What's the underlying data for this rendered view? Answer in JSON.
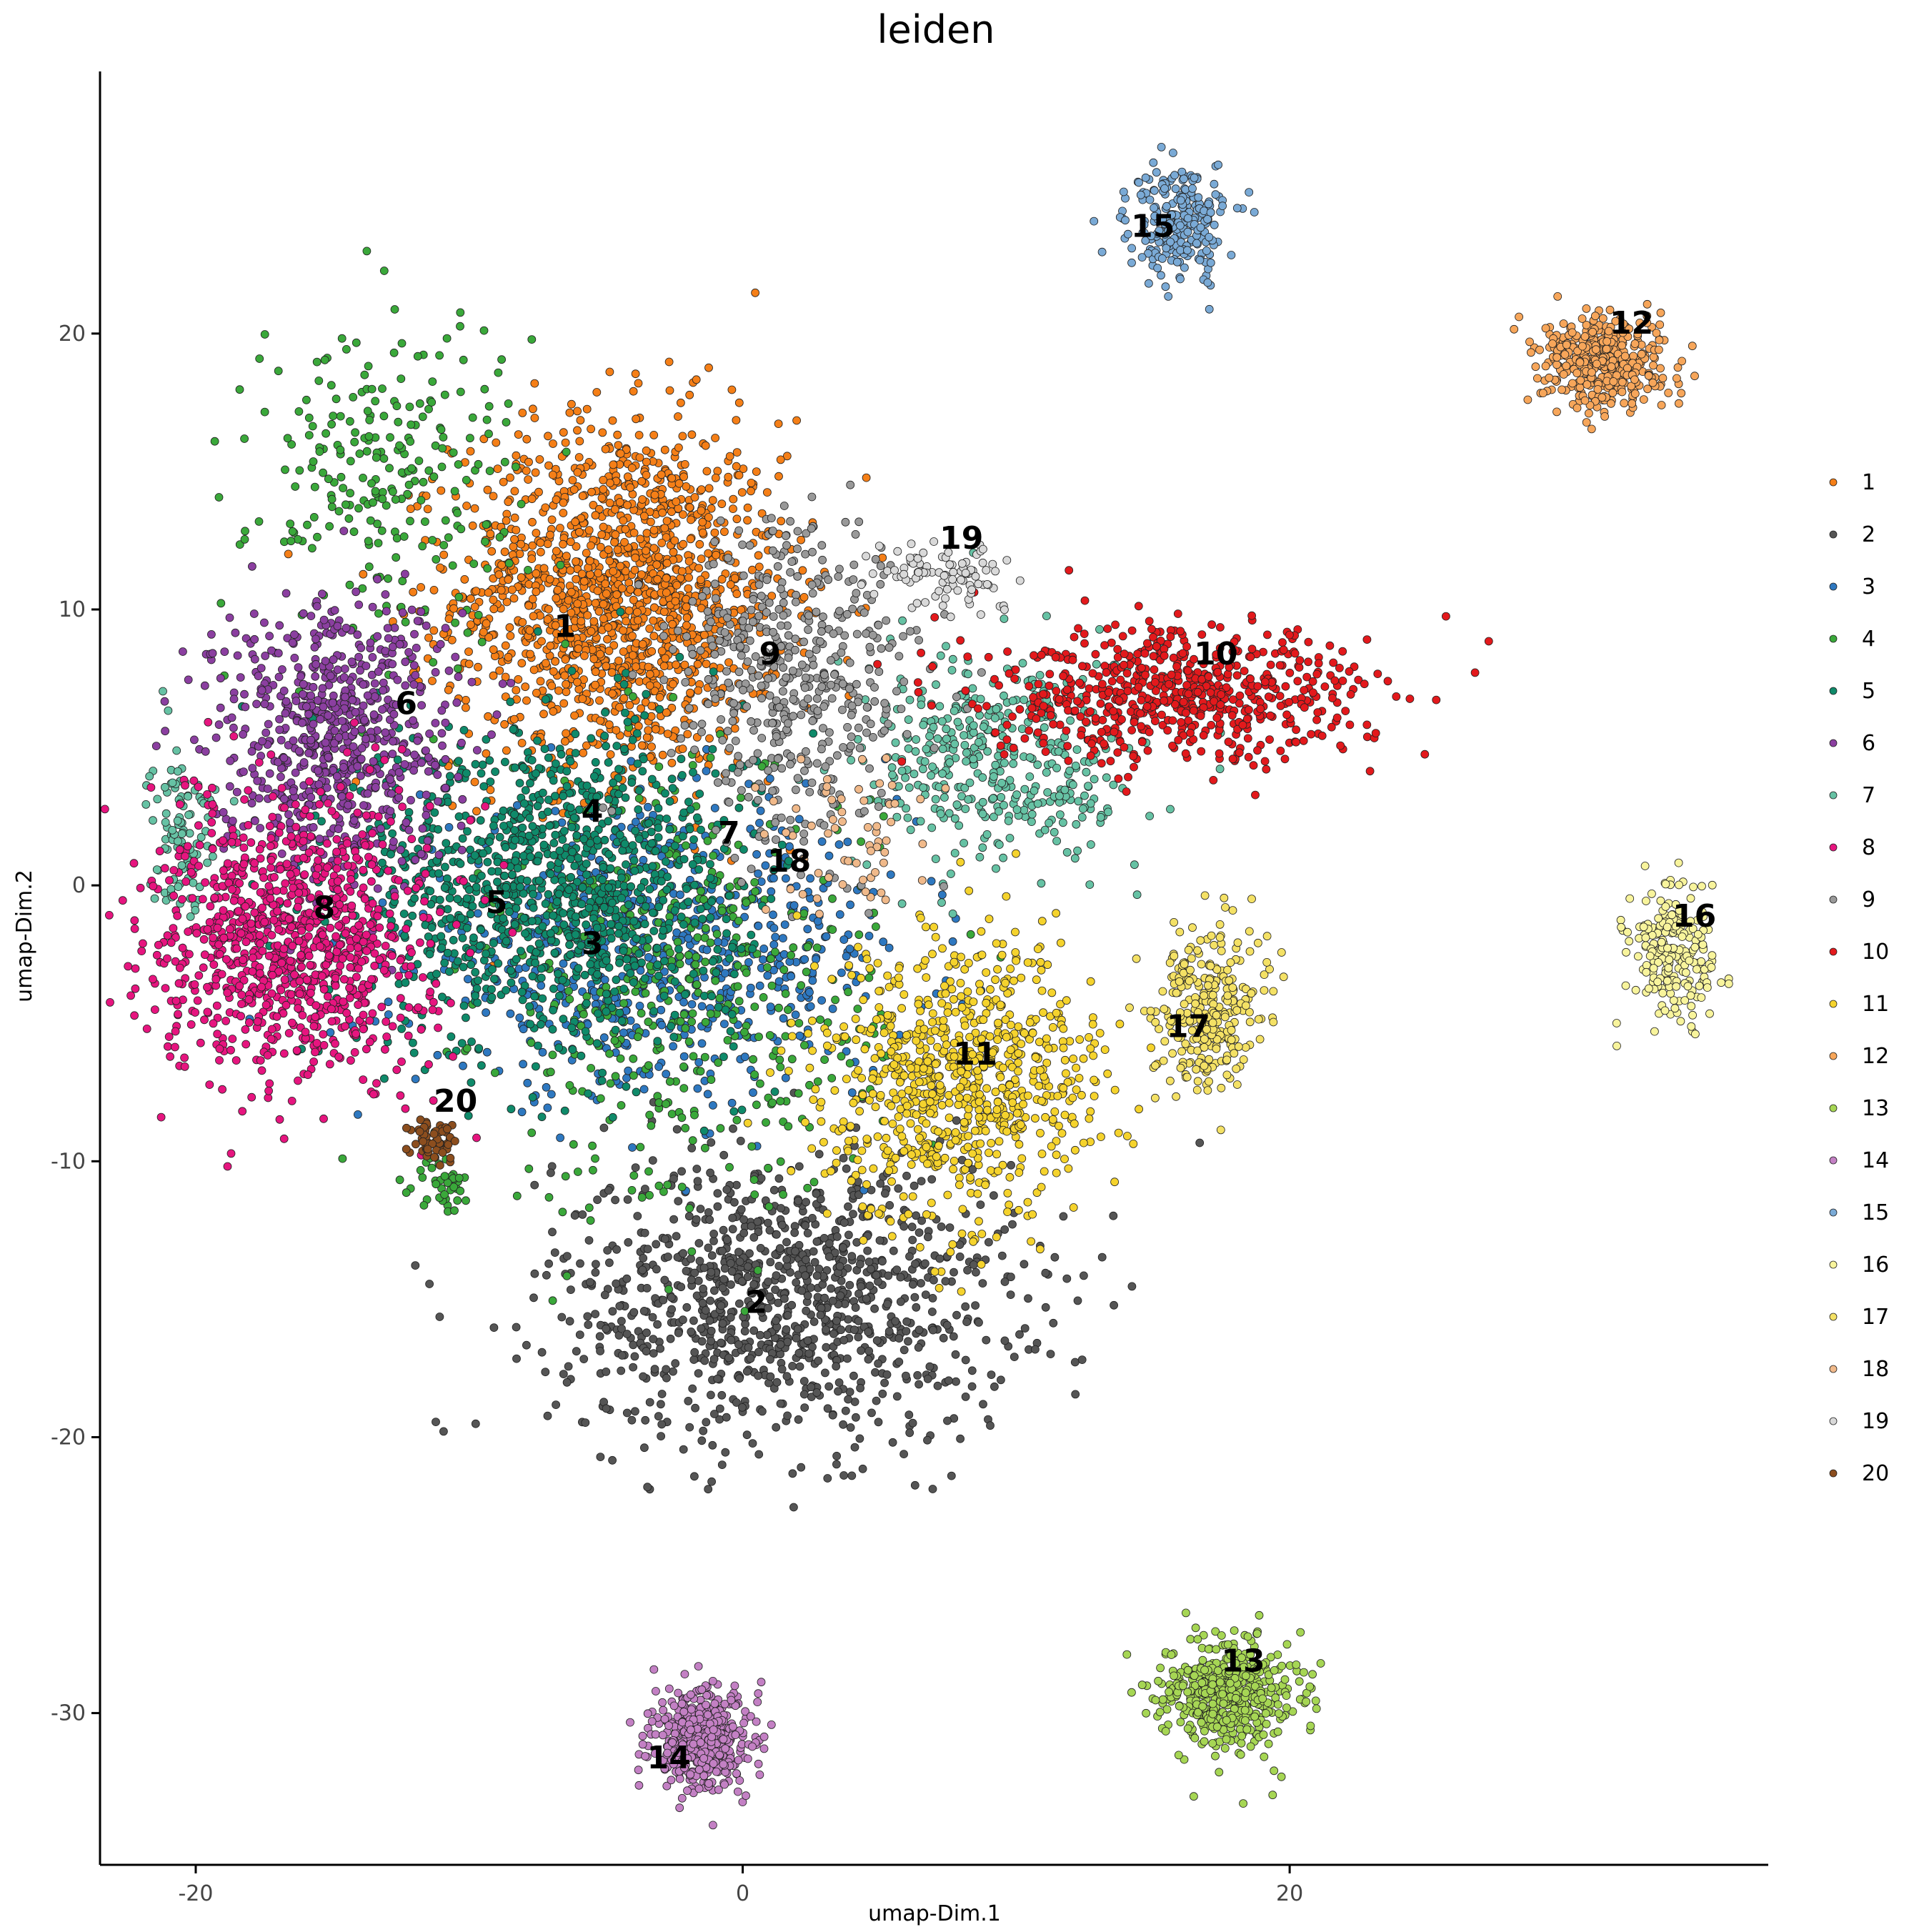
{
  "chart_data": {
    "type": "scatter",
    "title": "leiden",
    "xlabel": "umap-Dim.1",
    "ylabel": "umap-Dim.2",
    "xlim": [
      -23.5,
      37.5
    ],
    "ylim": [
      -35.5,
      29.5
    ],
    "x_ticks": [
      -20,
      0,
      20
    ],
    "y_ticks": [
      20,
      10,
      0,
      -10,
      -20,
      -30
    ],
    "grid": false,
    "legend_position": "right",
    "series": [
      {
        "name": "1",
        "color": "#f57f17",
        "label_pos": [
          -6.5,
          9.0
        ],
        "clusters": [
          {
            "cx": -4.5,
            "cy": 10.5,
            "sx": 3.0,
            "sy": 3.2,
            "n": 1500
          }
        ]
      },
      {
        "name": "2",
        "color": "#555555",
        "label_pos": [
          0.5,
          -15.5
        ],
        "clusters": [
          {
            "cx": 1.5,
            "cy": -15.0,
            "sx": 4.2,
            "sy": 2.6,
            "n": 1100
          }
        ]
      },
      {
        "name": "3",
        "color": "#2e78c0",
        "label_pos": [
          -5.5,
          -2.5
        ],
        "clusters": [
          {
            "cx": -3.0,
            "cy": -2.5,
            "sx": 4.5,
            "sy": 2.5,
            "n": 700
          }
        ]
      },
      {
        "name": "4",
        "color": "#3aa83a",
        "label_pos": [
          -5.5,
          2.3
        ],
        "clusters": [
          {
            "cx": -13.0,
            "cy": 15.0,
            "sx": 2.5,
            "sy": 3.0,
            "n": 260
          },
          {
            "cx": -2.0,
            "cy": -4.0,
            "sx": 3.5,
            "sy": 4.0,
            "n": 450
          },
          {
            "cx": -11.0,
            "cy": -10.8,
            "sx": 0.5,
            "sy": 0.5,
            "n": 40
          }
        ]
      },
      {
        "name": "5",
        "color": "#0f8a6a",
        "label_pos": [
          -9.0,
          -1.0
        ],
        "clusters": [
          {
            "cx": -7.0,
            "cy": 0.0,
            "sx": 3.5,
            "sy": 3.0,
            "n": 1100
          }
        ]
      },
      {
        "name": "6",
        "color": "#8b3fa0",
        "label_pos": [
          -12.3,
          6.2
        ],
        "clusters": [
          {
            "cx": -15.0,
            "cy": 5.5,
            "sx": 2.2,
            "sy": 2.5,
            "n": 700
          }
        ]
      },
      {
        "name": "7",
        "color": "#66c2a4",
        "label_pos": [
          -0.5,
          1.5
        ],
        "clusters": [
          {
            "cx": 9.5,
            "cy": 4.5,
            "sx": 2.5,
            "sy": 2.0,
            "n": 420
          },
          {
            "cx": -20.5,
            "cy": 2.0,
            "sx": 0.6,
            "sy": 1.5,
            "n": 110
          }
        ]
      },
      {
        "name": "8",
        "color": "#e6157f",
        "label_pos": [
          -15.3,
          -1.2
        ],
        "clusters": [
          {
            "cx": -16.5,
            "cy": -2.0,
            "sx": 2.5,
            "sy": 2.5,
            "n": 1000
          }
        ]
      },
      {
        "name": "9",
        "color": "#999999",
        "label_pos": [
          1.0,
          8.0
        ],
        "clusters": [
          {
            "cx": 2.0,
            "cy": 7.5,
            "sx": 2.2,
            "sy": 3.0,
            "n": 500
          }
        ]
      },
      {
        "name": "10",
        "color": "#e3191c",
        "label_pos": [
          17.3,
          8.0
        ],
        "clusters": [
          {
            "cx": 16.0,
            "cy": 6.8,
            "sx": 3.5,
            "sy": 1.2,
            "n": 650
          }
        ]
      },
      {
        "name": "11",
        "color": "#f5d32d",
        "label_pos": [
          8.5,
          -6.5
        ],
        "clusters": [
          {
            "cx": 8.0,
            "cy": -7.0,
            "sx": 2.5,
            "sy": 2.5,
            "n": 800
          }
        ]
      },
      {
        "name": "12",
        "color": "#f7a65a",
        "label_pos": [
          32.5,
          20.0
        ],
        "clusters": [
          {
            "cx": 31.5,
            "cy": 19.0,
            "sx": 1.1,
            "sy": 0.8,
            "n": 450
          }
        ]
      },
      {
        "name": "13",
        "color": "#a6d654",
        "label_pos": [
          18.3,
          -28.5
        ],
        "clusters": [
          {
            "cx": 17.8,
            "cy": -29.3,
            "sx": 1.2,
            "sy": 1.0,
            "n": 500
          }
        ]
      },
      {
        "name": "14",
        "color": "#c380c4",
        "label_pos": [
          -2.7,
          -32.0
        ],
        "clusters": [
          {
            "cx": -1.5,
            "cy": -31.0,
            "sx": 0.9,
            "sy": 0.9,
            "n": 450
          }
        ]
      },
      {
        "name": "15",
        "color": "#7aaad6",
        "label_pos": [
          15.0,
          23.5
        ],
        "clusters": [
          {
            "cx": 16.0,
            "cy": 24.0,
            "sx": 0.9,
            "sy": 1.0,
            "n": 250
          }
        ]
      },
      {
        "name": "16",
        "color": "#f8f49c",
        "label_pos": [
          34.8,
          -1.5
        ],
        "clusters": [
          {
            "cx": 34.0,
            "cy": -2.5,
            "sx": 0.8,
            "sy": 1.2,
            "n": 220
          }
        ]
      },
      {
        "name": "17",
        "color": "#f4e165",
        "label_pos": [
          16.3,
          -5.5
        ],
        "clusters": [
          {
            "cx": 17.0,
            "cy": -4.5,
            "sx": 1.0,
            "sy": 1.5,
            "n": 300
          }
        ]
      },
      {
        "name": "18",
        "color": "#f0b98a",
        "label_pos": [
          1.7,
          0.5
        ],
        "clusters": [
          {
            "cx": 4.0,
            "cy": 2.0,
            "sx": 1.5,
            "sy": 1.5,
            "n": 60
          }
        ]
      },
      {
        "name": "19",
        "color": "#d9d9d9",
        "label_pos": [
          8.0,
          12.2
        ],
        "clusters": [
          {
            "cx": 7.5,
            "cy": 11.3,
            "sx": 1.2,
            "sy": 0.6,
            "n": 90
          }
        ]
      },
      {
        "name": "20",
        "color": "#8c4e1e",
        "label_pos": [
          -10.5,
          -8.2
        ],
        "clusters": [
          {
            "cx": -11.3,
            "cy": -9.2,
            "sx": 0.4,
            "sy": 0.4,
            "n": 60
          }
        ]
      }
    ]
  }
}
